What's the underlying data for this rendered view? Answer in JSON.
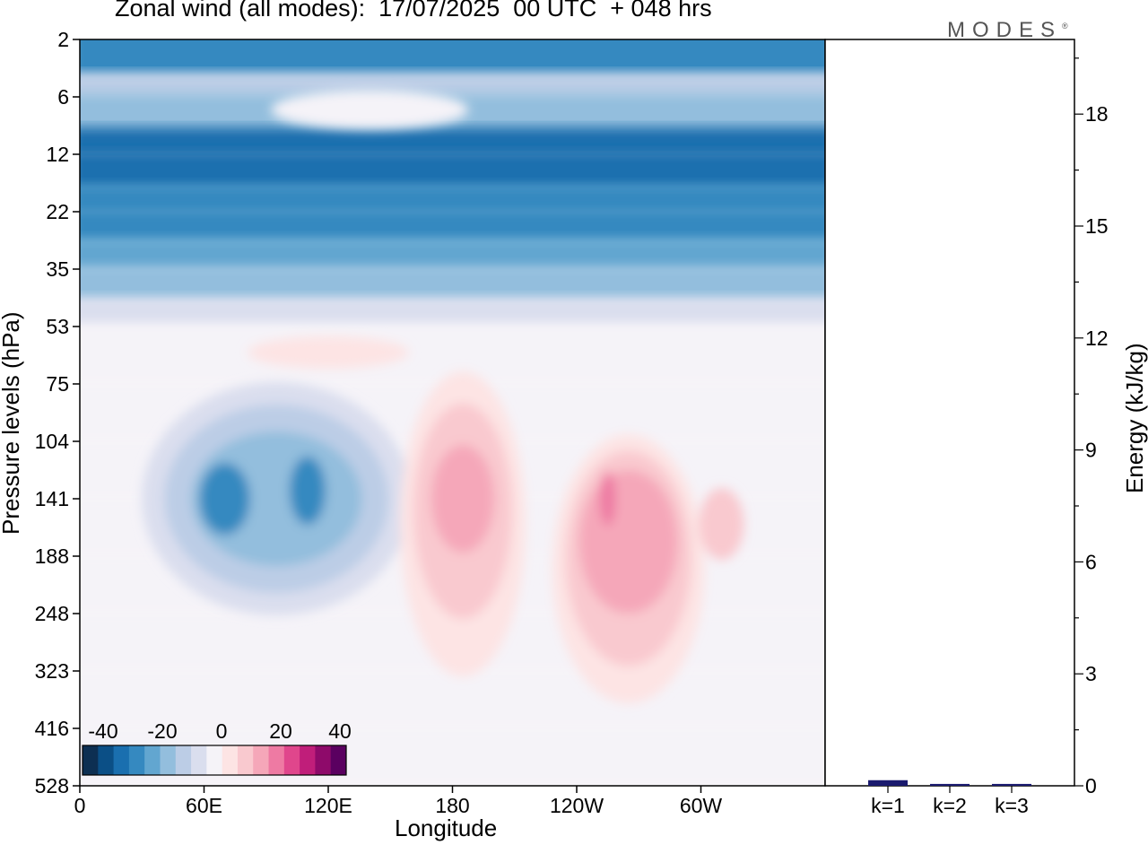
{
  "chart_data": [
    {
      "type": "heatmap",
      "title": "Zonal wind (all modes):  17/07/2025  00 UTC  + 048 hrs",
      "xlabel": "Longitude",
      "ylabel": "Pressure levels (hPa)",
      "x_ticks": [
        "0",
        "60E",
        "120E",
        "180",
        "120W",
        "60W"
      ],
      "y_ticks": [
        "2",
        "6",
        "12",
        "22",
        "35",
        "53",
        "75",
        "104",
        "141",
        "188",
        "248",
        "323",
        "416",
        "528"
      ],
      "colorbar": {
        "tick_labels": [
          "-40",
          "-20",
          "0",
          "20",
          "40"
        ],
        "colors": [
          "#0d2f52",
          "#0b4f86",
          "#1a6faf",
          "#3589c0",
          "#62a6d0",
          "#93bedd",
          "#bccde6",
          "#dadeee",
          "#f5f3f8",
          "#fde4e4",
          "#f9c9cf",
          "#f5a7b9",
          "#ee7aa3",
          "#e0468c",
          "#c01e7a",
          "#8e0a6a",
          "#5a0060"
        ]
      },
      "bands": [
        {
          "level": "2",
          "color": "#3589c0"
        },
        {
          "level": "4",
          "color": "#bccde6"
        },
        {
          "level": "6",
          "color": "#93bedd"
        },
        {
          "level": "9",
          "color": "#1a6faf"
        },
        {
          "level": "12",
          "color": "#1a6faf"
        },
        {
          "level": "17",
          "color": "#3589c0"
        },
        {
          "level": "22",
          "color": "#3589c0"
        },
        {
          "level": "28",
          "color": "#62a6d0"
        },
        {
          "level": "35",
          "color": "#93bedd"
        },
        {
          "level": "44",
          "color": "#dadeee"
        },
        {
          "level": "53",
          "color": "#f5f3f8"
        },
        {
          "level": "75",
          "color": "#f5f3f8"
        },
        {
          "level": "104",
          "color": "#f5f3f8"
        },
        {
          "level": "141",
          "color": "#f5f3f8"
        },
        {
          "level": "188",
          "color": "#f5f3f8"
        },
        {
          "level": "248",
          "color": "#f5f3f8"
        },
        {
          "level": "323",
          "color": "#f5f3f8"
        },
        {
          "level": "416",
          "color": "#f5f3f8"
        },
        {
          "level": "528",
          "color": "#f5f3f8"
        }
      ],
      "features": [
        {
          "lon": 95,
          "level": 141,
          "color": "#dadeee"
        },
        {
          "lon": 95,
          "level": 141,
          "color": "#bccde6"
        },
        {
          "lon": 95,
          "level": 141,
          "color": "#93bedd"
        },
        {
          "lon": 70,
          "level": 141,
          "color": "#3589c0"
        },
        {
          "lon": 110,
          "level": 135,
          "color": "#3589c0"
        },
        {
          "lon": 185,
          "level": 160,
          "color": "#fde4e4"
        },
        {
          "lon": 185,
          "level": 150,
          "color": "#f9c9cf"
        },
        {
          "lon": 185,
          "level": 141,
          "color": "#f5a7b9"
        },
        {
          "lon": 265,
          "level": 200,
          "color": "#fde4e4"
        },
        {
          "lon": 265,
          "level": 190,
          "color": "#f9c9cf"
        },
        {
          "lon": 265,
          "level": 175,
          "color": "#f5a7b9"
        },
        {
          "lon": 255,
          "level": 141,
          "color": "#ee7aa3"
        },
        {
          "lon": 310,
          "level": 160,
          "color": "#f9c9cf"
        },
        {
          "lon": 120,
          "level": 62,
          "color": "#fde4e4"
        },
        {
          "lon": 140,
          "level": 7,
          "color": "#f5f3f8"
        }
      ]
    },
    {
      "type": "bar",
      "ylabel": "Energy (kJ/kg)",
      "categories": [
        "k=1",
        "k=2",
        "k=3"
      ],
      "values": [
        0.15,
        0.05,
        0.05
      ],
      "ylim": [
        0,
        20
      ],
      "y_ticks": [
        "0",
        "3",
        "6",
        "9",
        "12",
        "15",
        "18"
      ],
      "color": "#1a1a6e"
    }
  ],
  "header": {
    "title": "Zonal wind (all modes):  17/07/2025  00 UTC  + 048 hrs",
    "brand": "MODES"
  }
}
